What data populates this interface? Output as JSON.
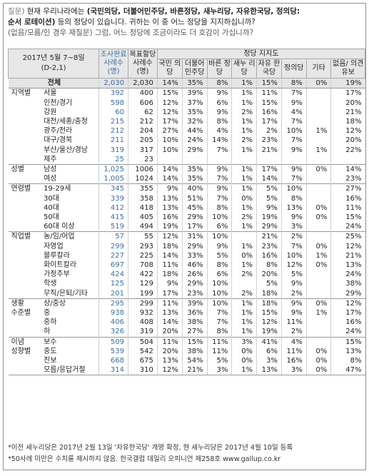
{
  "question": {
    "label": "질문)",
    "line1_plain": "현재 우리나라에는 ",
    "line1_bold": "(국민의당, 더불어민주당, 바른정당, 새누리당, 자유한국당, 정의당:",
    "line2_bold": "순서 로테이션)",
    "line2_plain": " 등의 정당이 있습니다. 귀하는 이 중 어느 정당을 지지하십니까?",
    "line3": "(없음/모름/인 경우 재질문) 그럼, 어느 정당에 조금이라도 더 호감이 가십니까?"
  },
  "table": {
    "date_line1": "2017년 5월 7~8일",
    "date_line2": "(D-2,1)",
    "survey_header": "조사완료 사례수 (명)",
    "target_header": "목표할당 사례수 (명)",
    "support_header": "정당 지지도",
    "party_headers": [
      "국민 의당",
      "더불어 민주당",
      "바른 정당",
      "새누 리당",
      "자유 한국당",
      "정의당",
      "기타",
      "없음/ 의견유보"
    ],
    "total": {
      "label": "전체",
      "values": [
        "2,030",
        "2,030",
        "14%",
        "35%",
        "8%",
        "1%",
        "15%",
        "8%",
        "0%",
        "19%"
      ]
    },
    "sections": [
      {
        "group": "지역별",
        "rows": [
          {
            "sub": "서울",
            "values": [
              "392",
              "400",
              "15%",
              "39%",
              "9%",
              "1%",
              "11%",
              "7%",
              "",
              "17%"
            ]
          },
          {
            "sub": "인천/경기",
            "values": [
              "598",
              "606",
              "12%",
              "37%",
              "6%",
              "1%",
              "15%",
              "9%",
              "",
              "20%"
            ]
          },
          {
            "sub": "강원",
            "values": [
              "60",
              "62",
              "12%",
              "35%",
              "9%",
              "2%",
              "16%",
              "4%",
              "",
              "21%"
            ]
          },
          {
            "sub": "대전/세종/충청",
            "values": [
              "215",
              "212",
              "17%",
              "32%",
              "8%",
              "1%",
              "17%",
              "7%",
              "",
              "18%"
            ]
          },
          {
            "sub": "광주/전라",
            "values": [
              "212",
              "204",
              "27%",
              "44%",
              "4%",
              "1%",
              "2%",
              "10%",
              "1%",
              "12%"
            ]
          },
          {
            "sub": "대구/경북",
            "values": [
              "211",
              "205",
              "10%",
              "24%",
              "14%",
              "2%",
              "23%",
              "7%",
              "",
              "20%"
            ]
          },
          {
            "sub": "부산/울산/경남",
            "values": [
              "319",
              "317",
              "10%",
              "29%",
              "7%",
              "1%",
              "21%",
              "9%",
              "1%",
              "22%"
            ]
          },
          {
            "sub": "제주",
            "values": [
              "25",
              "23",
              "",
              "",
              "",
              "",
              "",
              "",
              "",
              ""
            ]
          }
        ]
      },
      {
        "group": "성별",
        "rows": [
          {
            "sub": "남성",
            "values": [
              "1,025",
              "1006",
              "14%",
              "35%",
              "9%",
              "1%",
              "17%",
              "9%",
              "0%",
              "14%"
            ]
          },
          {
            "sub": "여성",
            "values": [
              "1,005",
              "1024",
              "14%",
              "35%",
              "7%",
              "1%",
              "14%",
              "7%",
              "",
              "23%"
            ]
          }
        ]
      },
      {
        "group": "연령별",
        "rows": [
          {
            "sub": "19-29세",
            "values": [
              "345",
              "355",
              "9%",
              "40%",
              "9%",
              "1%",
              "5%",
              "10%",
              "",
              "27%"
            ]
          },
          {
            "sub": "30대",
            "values": [
              "339",
              "358",
              "13%",
              "51%",
              "7%",
              "0%",
              "5%",
              "8%",
              "",
              "16%"
            ]
          },
          {
            "sub": "40대",
            "values": [
              "412",
              "418",
              "13%",
              "45%",
              "8%",
              "1%",
              "9%",
              "13%",
              "0%",
              "11%"
            ]
          },
          {
            "sub": "50대",
            "values": [
              "415",
              "405",
              "16%",
              "29%",
              "10%",
              "2%",
              "19%",
              "9%",
              "0%",
              "15%"
            ]
          },
          {
            "sub": "60대 이상",
            "values": [
              "519",
              "494",
              "19%",
              "17%",
              "6%",
              "1%",
              "29%",
              "3%",
              "",
              "24%"
            ]
          }
        ]
      },
      {
        "group": "직업별",
        "rows": [
          {
            "sub": "농/임/어업",
            "values": [
              "57",
              "55",
              "12%",
              "31%",
              "10%",
              "",
              "21%",
              "2%",
              "",
              "25%"
            ]
          },
          {
            "sub": "자영업",
            "values": [
              "299",
              "293",
              "18%",
              "29%",
              "9%",
              "1%",
              "23%",
              "7%",
              "0%",
              "12%"
            ]
          },
          {
            "sub": "블루칼라",
            "values": [
              "227",
              "225",
              "14%",
              "33%",
              "5%",
              "0%",
              "16%",
              "10%",
              "1%",
              "21%"
            ]
          },
          {
            "sub": "화이트칼라",
            "values": [
              "697",
              "708",
              "11%",
              "46%",
              "8%",
              "1%",
              "8%",
              "12%",
              "0%",
              "13%"
            ]
          },
          {
            "sub": "가정주부",
            "values": [
              "424",
              "422",
              "18%",
              "26%",
              "6%",
              "2%",
              "20%",
              "5%",
              "",
              "24%"
            ]
          },
          {
            "sub": "학생",
            "values": [
              "125",
              "129",
              "9%",
              "29%",
              "10%",
              "",
              "5%",
              "9%",
              "",
              "38%"
            ]
          },
          {
            "sub": "무직/은퇴/기타",
            "values": [
              "201",
              "199",
              "17%",
              "23%",
              "10%",
              "2%",
              "18%",
              "2%",
              "",
              "29%"
            ]
          }
        ]
      },
      {
        "group": "생활",
        "rows": [
          {
            "sub": "상/중상",
            "values": [
              "295",
              "299",
              "11%",
              "39%",
              "10%",
              "1%",
              "18%",
              "9%",
              "0%",
              "12%"
            ]
          }
        ]
      },
      {
        "group": "수준별",
        "rows": [
          {
            "sub": "중",
            "values": [
              "938",
              "932",
              "13%",
              "36%",
              "7%",
              "1%",
              "15%",
              "9%",
              "1%",
              "17%"
            ]
          },
          {
            "sub": "중하",
            "values": [
              "406",
              "408",
              "14%",
              "38%",
              "7%",
              "1%",
              "12%",
              "11%",
              "",
              "16%"
            ]
          },
          {
            "sub": "하",
            "values": [
              "326",
              "319",
              "20%",
              "27%",
              "8%",
              "1%",
              "19%",
              "2%",
              "",
              "24%"
            ]
          }
        ]
      },
      {
        "group": "이념",
        "rows": [
          {
            "sub": "보수",
            "values": [
              "509",
              "504",
              "11%",
              "15%",
              "11%",
              "3%",
              "41%",
              "4%",
              "",
              "15%"
            ]
          }
        ]
      },
      {
        "group": "성향별",
        "rows": [
          {
            "sub": "중도",
            "values": [
              "539",
              "542",
              "20%",
              "38%",
              "11%",
              "0%",
              "6%",
              "11%",
              "0%",
              "13%"
            ]
          },
          {
            "sub": "진보",
            "values": [
              "668",
              "675",
              "13%",
              "54%",
              "5%",
              "0%",
              "3%",
              "16%",
              "0%",
              "8%"
            ]
          },
          {
            "sub": "모름/응답거절",
            "values": [
              "314",
              "310",
              "12%",
              "21%",
              "3%",
              "1%",
              "13%",
              "3%",
              "0%",
              "47%"
            ]
          }
        ]
      }
    ]
  },
  "footer": {
    "line1": "*이전 새누리당은 2017년 2월 13일 '자유한국당' 개명 확정, 현 새누리당은 2017년 4월 10일 등록",
    "line2": "*50사례 미만은 수치를 제시하지 않음. 한국갤럽 데일리 오피니언 제258호 www.gallup.co.kr"
  }
}
